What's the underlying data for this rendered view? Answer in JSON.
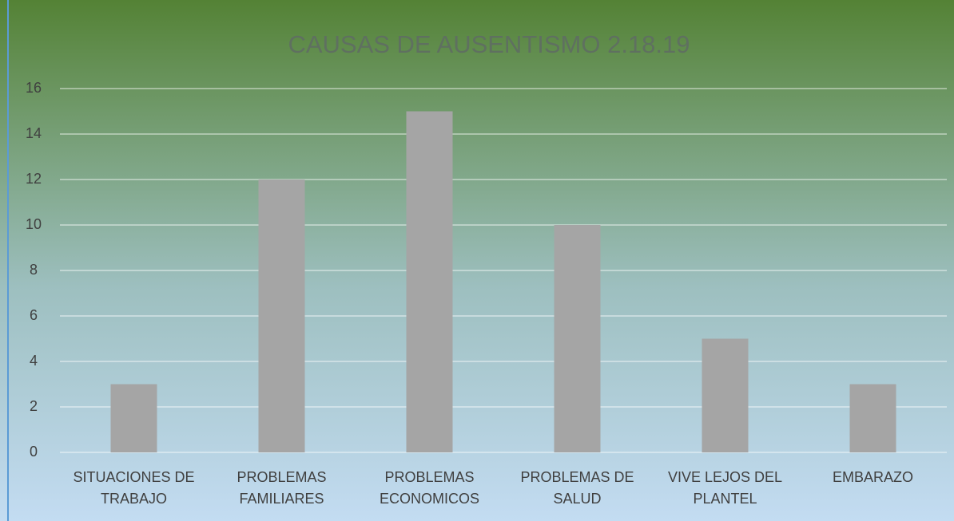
{
  "chart_data": {
    "type": "bar",
    "title": "CAUSAS DE AUSENTISMO 2.18.19",
    "categories": [
      "SITUACIONES DE TRABAJO",
      "PROBLEMAS FAMILIARES",
      "PROBLEMAS ECONOMICOS",
      "PROBLEMAS DE SALUD",
      "VIVE LEJOS DEL PLANTEL",
      "EMBARAZO"
    ],
    "values": [
      3,
      12,
      15,
      10,
      5,
      3
    ],
    "color": "#a5a5a5",
    "ylim": [
      0,
      16
    ],
    "yticks": [
      0,
      2,
      4,
      6,
      8,
      10,
      12,
      14,
      16
    ],
    "grid": true
  }
}
